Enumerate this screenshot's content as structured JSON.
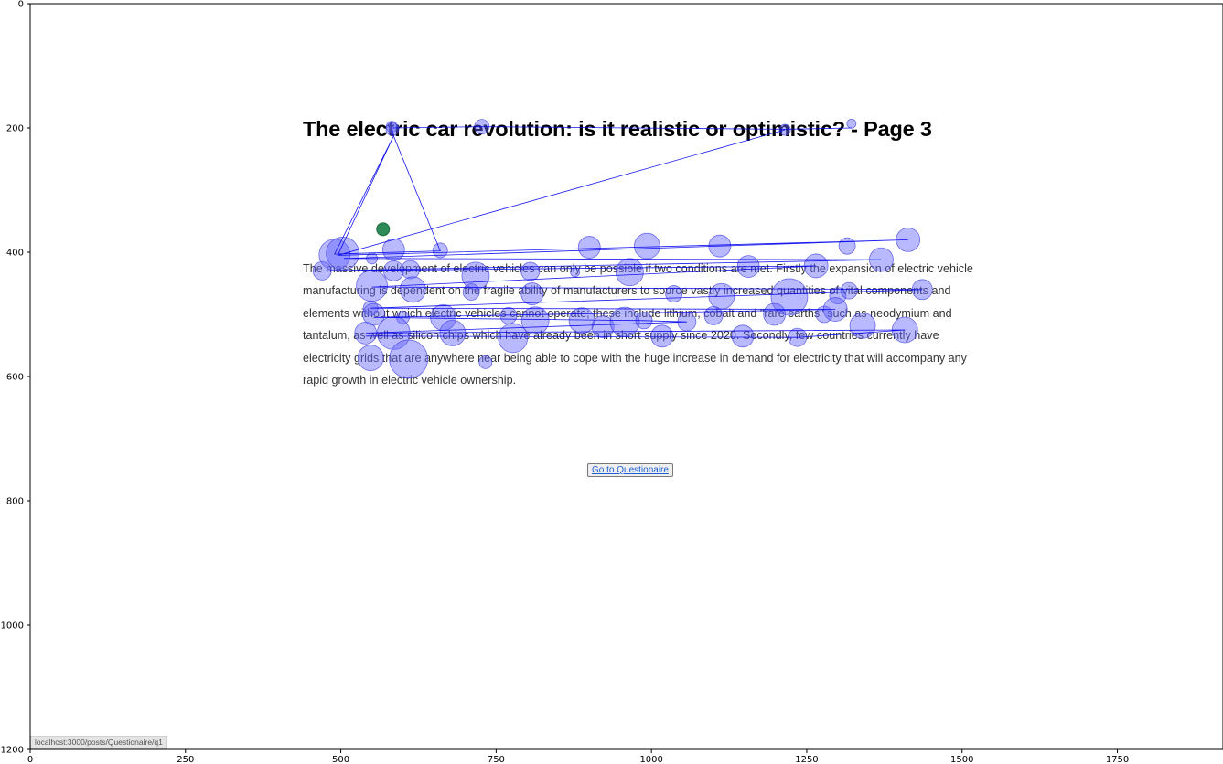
{
  "page": {
    "title": "The electric car revolution: is it realistic or optimistic? - Page 3",
    "paragraph_lines": [
      "The massive development of electric vehicles can only be possible if two conditions are met. Firstly the expansion of electric vehicle",
      "manufacturing is dependent on the fragile ability of manufacturers to source vastly increased quantities of vital components and",
      "elements without which electric vehicles cannot operate; these include lithium, cobalt and \"rare earths\" such as neodymium and",
      "tantalum, as well as silicon chips which have already been in short supply since 2020. Secondly, few countries currently have",
      "electricity grids that are anywhere near being able to cope with the huge increase in demand for electricity that will accompany any",
      "rapid growth in electric vehicle ownership."
    ],
    "button_label": "Go to Questionaire",
    "status_url": "localhost:3000/posts/Questionaire/q1"
  },
  "chart_data": {
    "type": "scatter",
    "title": "",
    "xlabel": "",
    "ylabel": "",
    "xlim": [
      0,
      1920
    ],
    "ylim": [
      1200,
      0
    ],
    "y_inverted": true,
    "grid": false,
    "x_ticks": [
      0,
      250,
      500,
      750,
      1000,
      1250,
      1500,
      1750
    ],
    "y_ticks": [
      0,
      200,
      400,
      600,
      800,
      1000,
      1200
    ],
    "colors": {
      "fixation_fill": "#6464ff",
      "fixation_stroke": "#3a3adf",
      "scanpath": "#0000ee",
      "marker": "#2e8b57"
    },
    "marker_point": [
      568,
      363
    ],
    "fixations": [
      {
        "x": 582,
        "y": 198,
        "r": 6
      },
      {
        "x": 583,
        "y": 202,
        "r": 7
      },
      {
        "x": 727,
        "y": 198,
        "r": 8
      },
      {
        "x": 1322,
        "y": 193,
        "r": 5
      },
      {
        "x": 1215,
        "y": 203,
        "r": 6
      },
      {
        "x": 490,
        "y": 404,
        "r": 17
      },
      {
        "x": 503,
        "y": 402,
        "r": 18
      },
      {
        "x": 550,
        "y": 410,
        "r": 6
      },
      {
        "x": 585,
        "y": 396,
        "r": 12
      },
      {
        "x": 660,
        "y": 397,
        "r": 8
      },
      {
        "x": 900,
        "y": 392,
        "r": 12
      },
      {
        "x": 993,
        "y": 390,
        "r": 14
      },
      {
        "x": 1110,
        "y": 390,
        "r": 12
      },
      {
        "x": 1315,
        "y": 390,
        "r": 9
      },
      {
        "x": 1413,
        "y": 380,
        "r": 13
      },
      {
        "x": 1370,
        "y": 412,
        "r": 13
      },
      {
        "x": 1265,
        "y": 422,
        "r": 13
      },
      {
        "x": 1156,
        "y": 423,
        "r": 12
      },
      {
        "x": 965,
        "y": 432,
        "r": 15
      },
      {
        "x": 877,
        "y": 432,
        "r": 5
      },
      {
        "x": 805,
        "y": 431,
        "r": 10
      },
      {
        "x": 717,
        "y": 438,
        "r": 15
      },
      {
        "x": 612,
        "y": 428,
        "r": 10
      },
      {
        "x": 585,
        "y": 430,
        "r": 11
      },
      {
        "x": 470,
        "y": 430,
        "r": 10
      },
      {
        "x": 550,
        "y": 454,
        "r": 17
      },
      {
        "x": 616,
        "y": 460,
        "r": 14
      },
      {
        "x": 710,
        "y": 464,
        "r": 9
      },
      {
        "x": 808,
        "y": 467,
        "r": 12
      },
      {
        "x": 1036,
        "y": 467,
        "r": 9
      },
      {
        "x": 1113,
        "y": 471,
        "r": 14
      },
      {
        "x": 1222,
        "y": 472,
        "r": 20
      },
      {
        "x": 1300,
        "y": 470,
        "r": 9
      },
      {
        "x": 1318,
        "y": 462,
        "r": 9
      },
      {
        "x": 1436,
        "y": 460,
        "r": 11
      },
      {
        "x": 548,
        "y": 490,
        "r": 8
      },
      {
        "x": 553,
        "y": 500,
        "r": 12
      },
      {
        "x": 600,
        "y": 505,
        "r": 7
      },
      {
        "x": 665,
        "y": 505,
        "r": 14
      },
      {
        "x": 770,
        "y": 502,
        "r": 9
      },
      {
        "x": 813,
        "y": 510,
        "r": 15
      },
      {
        "x": 888,
        "y": 510,
        "r": 14
      },
      {
        "x": 922,
        "y": 520,
        "r": 12
      },
      {
        "x": 957,
        "y": 512,
        "r": 16
      },
      {
        "x": 988,
        "y": 510,
        "r": 9
      },
      {
        "x": 1057,
        "y": 512,
        "r": 10
      },
      {
        "x": 1100,
        "y": 502,
        "r": 10
      },
      {
        "x": 1198,
        "y": 500,
        "r": 12
      },
      {
        "x": 1278,
        "y": 500,
        "r": 9
      },
      {
        "x": 1296,
        "y": 492,
        "r": 13
      },
      {
        "x": 540,
        "y": 530,
        "r": 12
      },
      {
        "x": 585,
        "y": 530,
        "r": 18
      },
      {
        "x": 680,
        "y": 530,
        "r": 14
      },
      {
        "x": 777,
        "y": 538,
        "r": 16
      },
      {
        "x": 1017,
        "y": 535,
        "r": 12
      },
      {
        "x": 1147,
        "y": 535,
        "r": 12
      },
      {
        "x": 1235,
        "y": 537,
        "r": 10
      },
      {
        "x": 1340,
        "y": 518,
        "r": 14
      },
      {
        "x": 1408,
        "y": 525,
        "r": 14
      },
      {
        "x": 548,
        "y": 570,
        "r": 14
      },
      {
        "x": 609,
        "y": 572,
        "r": 21
      },
      {
        "x": 733,
        "y": 577,
        "r": 7
      }
    ],
    "scanpath": [
      [
        1322,
        200
      ],
      [
        1215,
        202
      ],
      [
        727,
        198
      ],
      [
        582,
        200
      ],
      [
        585,
        213
      ],
      [
        490,
        403
      ],
      [
        660,
        398
      ],
      [
        585,
        213
      ],
      [
        495,
        405
      ],
      [
        1215,
        203
      ],
      [
        495,
        405
      ],
      [
        1413,
        380
      ],
      [
        505,
        410
      ],
      [
        1370,
        412
      ],
      [
        470,
        430
      ],
      [
        1265,
        422
      ],
      [
        550,
        456
      ],
      [
        1436,
        460
      ],
      [
        548,
        490
      ],
      [
        1296,
        492
      ],
      [
        553,
        505
      ],
      [
        988,
        510
      ],
      [
        1057,
        512
      ],
      [
        540,
        530
      ],
      [
        1408,
        525
      ],
      [
        1236,
        537
      ],
      [
        540,
        535
      ]
    ]
  }
}
